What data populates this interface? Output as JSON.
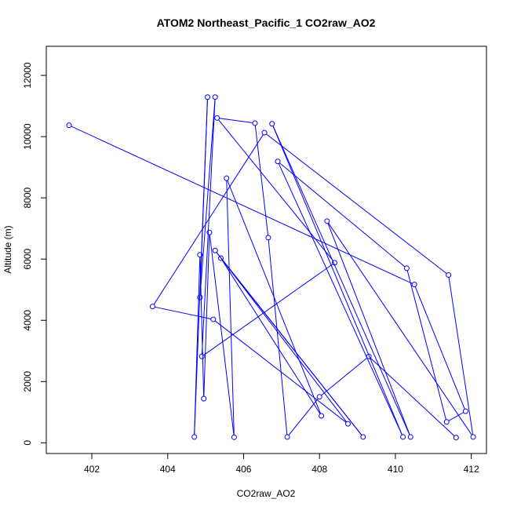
{
  "chart_data": {
    "type": "line",
    "title": "ATOM2 Northeast_Pacific_1 CO2raw_AO2",
    "xlabel": "CO2raw_AO2",
    "ylabel": "Altitude (m)",
    "xlim": [
      400.8,
      412.4
    ],
    "ylim": [
      -350,
      12950
    ],
    "x_ticks": [
      "402",
      "404",
      "406",
      "408",
      "410",
      "412"
    ],
    "y_ticks": [
      "0",
      "2000",
      "4000",
      "6000",
      "8000",
      "10000",
      "12000"
    ],
    "grid": false,
    "markers": "open-circle",
    "color": "#0000ff",
    "points": [
      [
        401.4,
        10370
      ],
      [
        410.5,
        5170
      ],
      [
        411.85,
        1030
      ],
      [
        411.35,
        680
      ],
      [
        410.3,
        5700
      ],
      [
        406.9,
        9190
      ],
      [
        410.2,
        190
      ],
      [
        406.75,
        10420
      ],
      [
        410.4,
        190
      ],
      [
        408.2,
        7240
      ],
      [
        412.05,
        190
      ],
      [
        411.4,
        5480
      ],
      [
        406.55,
        10130
      ],
      [
        403.6,
        4450
      ],
      [
        405.2,
        4030
      ],
      [
        408.75,
        620
      ],
      [
        405.25,
        6280
      ],
      [
        409.15,
        190
      ],
      [
        405.4,
        6030
      ],
      [
        408.05,
        880
      ],
      [
        405.55,
        8640
      ],
      [
        405.75,
        180
      ],
      [
        405.1,
        6870
      ],
      [
        404.95,
        1440
      ],
      [
        404.85,
        6140
      ],
      [
        404.7,
        190
      ],
      [
        405.05,
        11290
      ],
      [
        404.85,
        4750
      ],
      [
        405.25,
        11290
      ],
      [
        404.9,
        2820
      ],
      [
        408.4,
        5880
      ],
      [
        405.3,
        10610
      ],
      [
        406.3,
        10440
      ],
      [
        406.65,
        6700
      ],
      [
        407.15,
        190
      ],
      [
        408.0,
        1500
      ],
      [
        409.3,
        2820
      ],
      [
        411.6,
        170
      ]
    ]
  }
}
